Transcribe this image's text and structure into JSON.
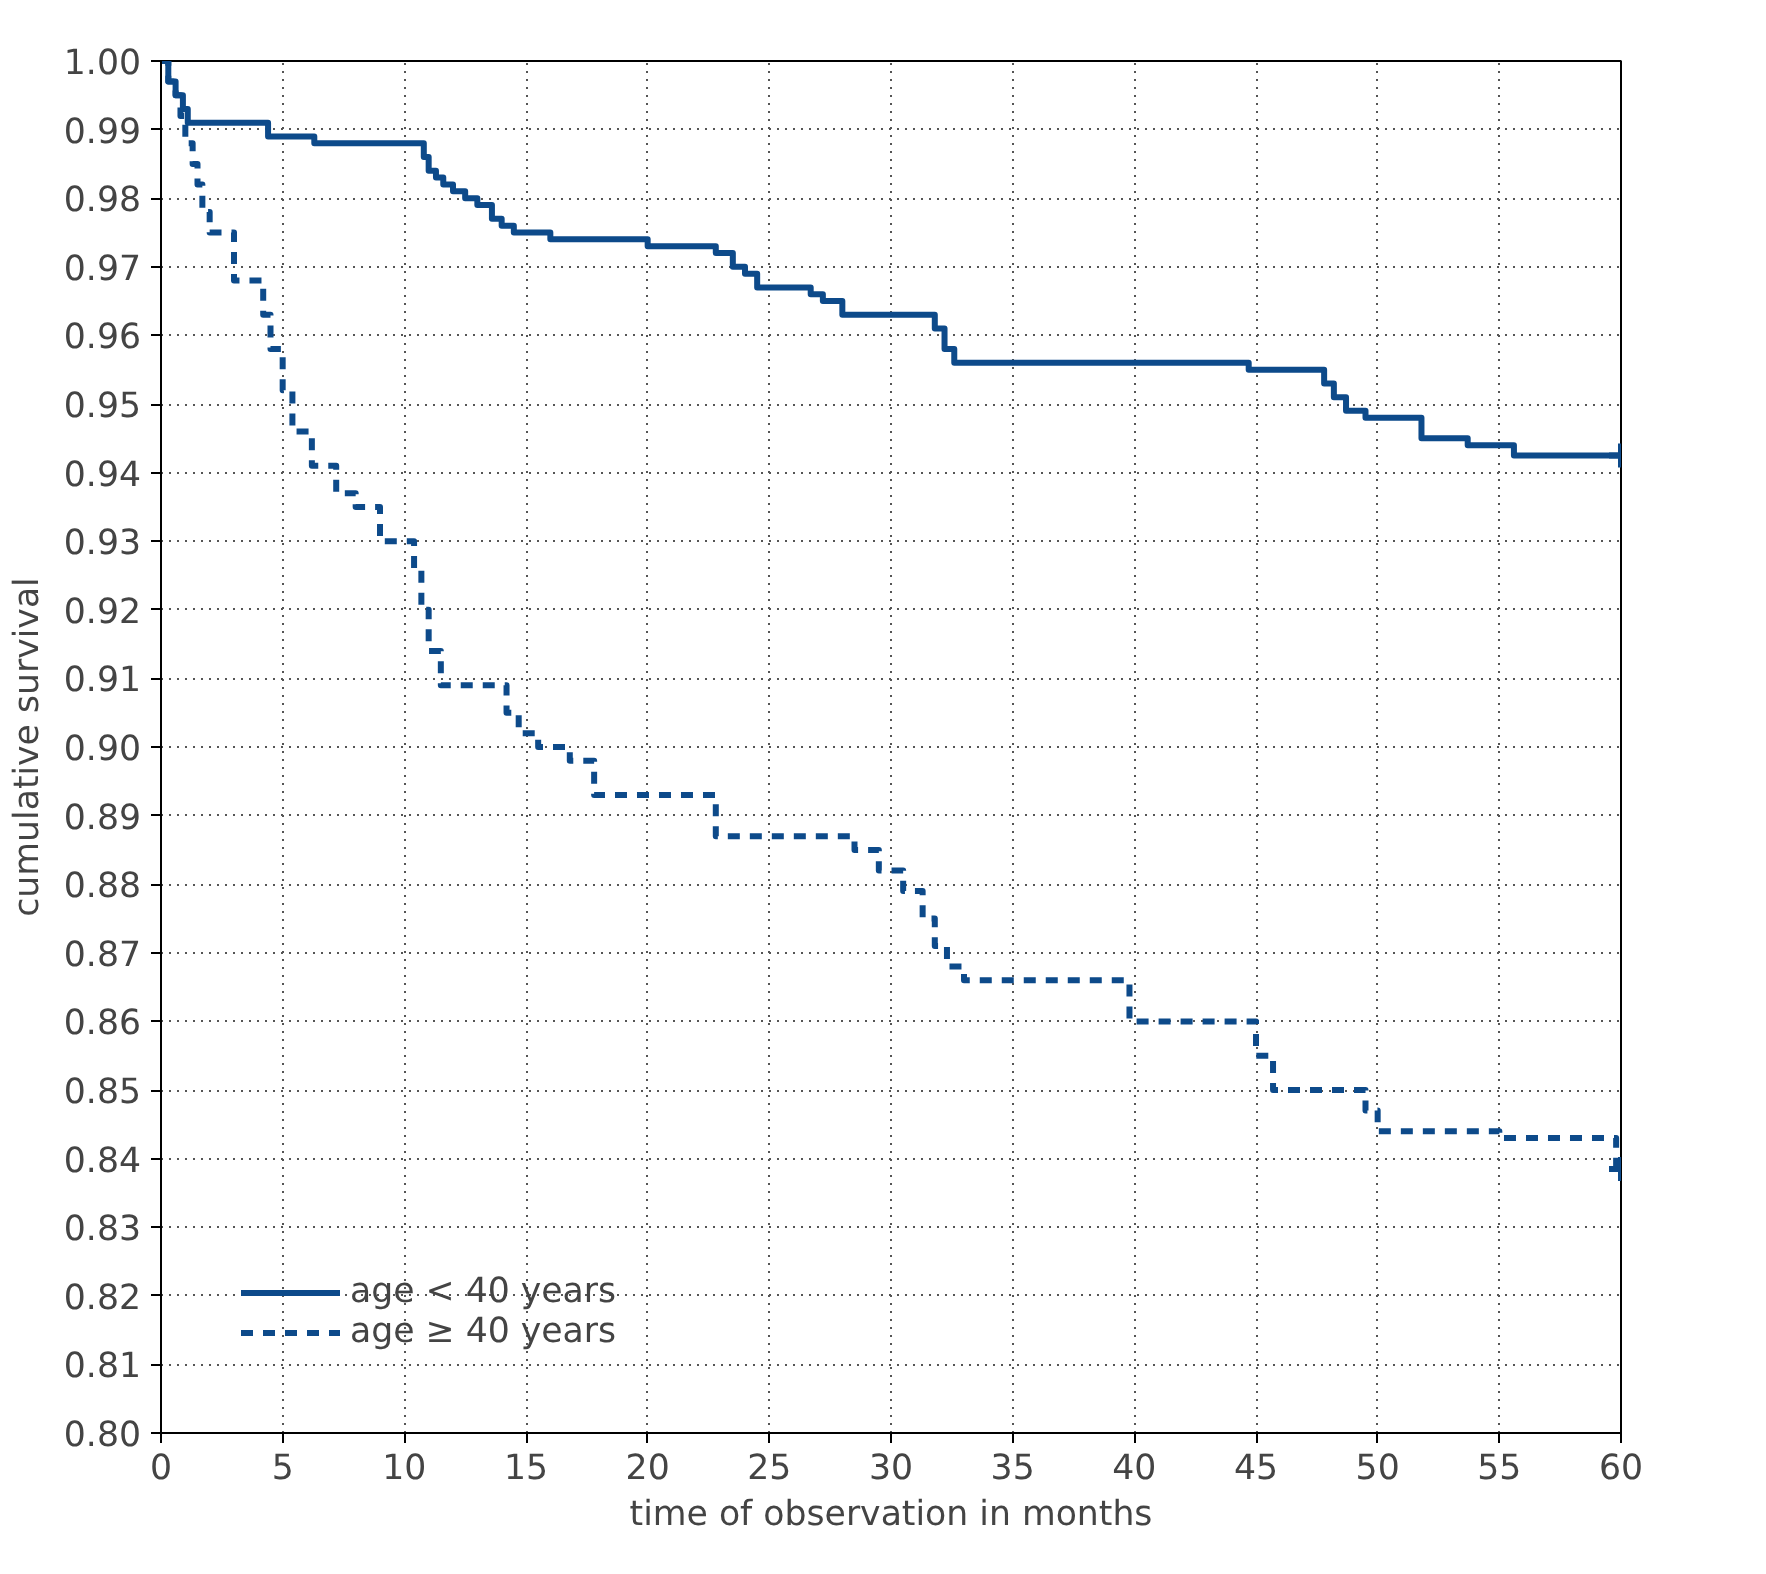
{
  "chart_data": {
    "type": "step",
    "xlabel": "time of observation in months",
    "ylabel": "cumulative survival",
    "xlim": [
      0,
      60
    ],
    "ylim": [
      0.8,
      1.0
    ],
    "xticks": [
      0,
      5,
      10,
      15,
      20,
      25,
      30,
      35,
      40,
      45,
      50,
      55,
      60
    ],
    "yticks": [
      {
        "value": 0.8,
        "label": "0.80"
      },
      {
        "value": 0.81,
        "label": "0.81"
      },
      {
        "value": 0.82,
        "label": "0.82"
      },
      {
        "value": 0.83,
        "label": "0.83"
      },
      {
        "value": 0.84,
        "label": "0.84"
      },
      {
        "value": 0.85,
        "label": "0.85"
      },
      {
        "value": 0.86,
        "label": "0.86"
      },
      {
        "value": 0.87,
        "label": "0.87"
      },
      {
        "value": 0.88,
        "label": "0.88"
      },
      {
        "value": 0.89,
        "label": "0.89"
      },
      {
        "value": 0.9,
        "label": "0.90"
      },
      {
        "value": 0.91,
        "label": "0.91"
      },
      {
        "value": 0.92,
        "label": "0.92"
      },
      {
        "value": 0.93,
        "label": "0.93"
      },
      {
        "value": 0.94,
        "label": "0.94"
      },
      {
        "value": 0.95,
        "label": "0.95"
      },
      {
        "value": 0.96,
        "label": "0.96"
      },
      {
        "value": 0.97,
        "label": "0.97"
      },
      {
        "value": 0.98,
        "label": "0.98"
      },
      {
        "value": 0.99,
        "label": "0.99"
      },
      {
        "value": 1.0,
        "label": "1.00"
      }
    ],
    "grid": true,
    "legend": "bottom left",
    "marker": "none",
    "series": [
      {
        "name": "age < 40 years",
        "color": "#0d4a8a",
        "line_style": "solid",
        "x": [
          0,
          0.3,
          0.6,
          0.9,
          1.1,
          4.4,
          6.3,
          10.8,
          11.0,
          11.3,
          11.6,
          12.0,
          12.5,
          13.0,
          13.6,
          14.0,
          14.5,
          16.0,
          20.0,
          22.8,
          23.5,
          24.0,
          24.5,
          26.7,
          27.2,
          28.0,
          31.8,
          32.2,
          32.6,
          44.7,
          47.8,
          48.2,
          48.7,
          49.5,
          51.8,
          53.7,
          55.6,
          60
        ],
        "values": [
          1.0,
          0.997,
          0.995,
          0.993,
          0.991,
          0.989,
          0.988,
          0.986,
          0.984,
          0.983,
          0.982,
          0.981,
          0.98,
          0.979,
          0.977,
          0.976,
          0.975,
          0.974,
          0.973,
          0.972,
          0.97,
          0.969,
          0.967,
          0.966,
          0.965,
          0.963,
          0.961,
          0.958,
          0.956,
          0.955,
          0.953,
          0.951,
          0.949,
          0.948,
          0.945,
          0.944,
          0.9425,
          0.9425
        ]
      },
      {
        "name": "age ≥ 40 years",
        "color": "#0d4a8a",
        "line_style": "dashed",
        "x": [
          0,
          0.3,
          0.6,
          0.8,
          1.0,
          1.3,
          1.5,
          1.7,
          2.0,
          3.0,
          4.2,
          4.5,
          5.0,
          5.4,
          6.2,
          7.2,
          8.0,
          9.0,
          10.4,
          10.7,
          11.0,
          11.5,
          14.2,
          14.7,
          15.5,
          16.8,
          17.8,
          22.8,
          28.5,
          29.5,
          30.5,
          31.3,
          31.8,
          32.3,
          33.0,
          39.8,
          45.0,
          45.7,
          49.5,
          50.0,
          55.0,
          59.8,
          60
        ],
        "values": [
          1.0,
          0.997,
          0.995,
          0.992,
          0.988,
          0.985,
          0.982,
          0.978,
          0.975,
          0.968,
          0.963,
          0.958,
          0.952,
          0.946,
          0.941,
          0.937,
          0.935,
          0.93,
          0.926,
          0.92,
          0.914,
          0.909,
          0.905,
          0.902,
          0.9,
          0.898,
          0.893,
          0.887,
          0.885,
          0.882,
          0.879,
          0.875,
          0.871,
          0.868,
          0.866,
          0.86,
          0.855,
          0.85,
          0.847,
          0.844,
          0.843,
          0.8385,
          0.8385
        ]
      },
      {
        "type": "scatter",
        "color": "#0d4a8a",
        "marker": "cross",
        "x": [
          60,
          60
        ],
        "values": [
          0.9425,
          0.8385
        ]
      }
    ]
  }
}
